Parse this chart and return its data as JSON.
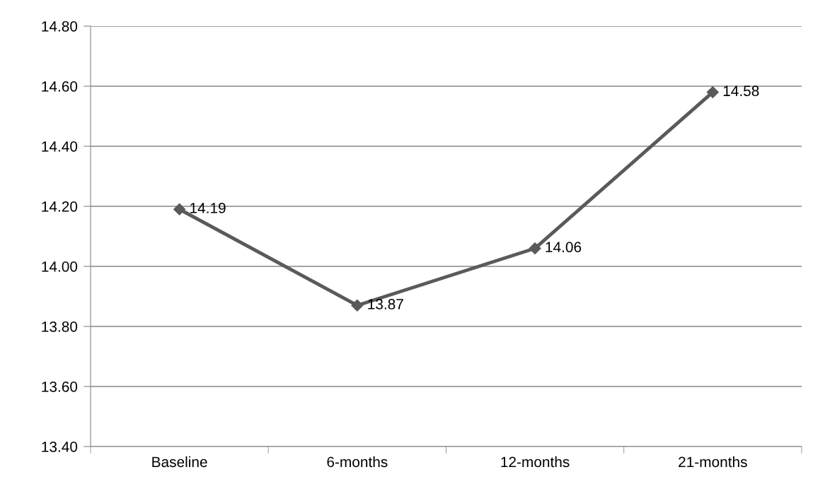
{
  "chart_data": {
    "type": "line",
    "categories": [
      "Baseline",
      "6-months",
      "12-months",
      "21-months"
    ],
    "series": [
      {
        "color": "#5a5a5a",
        "values": [
          14.19,
          13.87,
          14.06,
          14.58
        ]
      }
    ],
    "ylim": [
      13.4,
      14.8
    ],
    "yticks": [
      {
        "value": 13.4,
        "label": "13.40"
      },
      {
        "value": 13.6,
        "label": "13.60"
      },
      {
        "value": 13.8,
        "label": "13.80"
      },
      {
        "value": 14.0,
        "label": "14.00"
      },
      {
        "value": 14.2,
        "label": "14.20"
      },
      {
        "value": 14.4,
        "label": "14.40"
      },
      {
        "value": 14.6,
        "label": "14.60"
      },
      {
        "value": 14.8,
        "label": "14.80"
      }
    ],
    "grid": "y",
    "marker": "diamond",
    "line_style": "solid",
    "data_labels": true,
    "legend": false
  }
}
